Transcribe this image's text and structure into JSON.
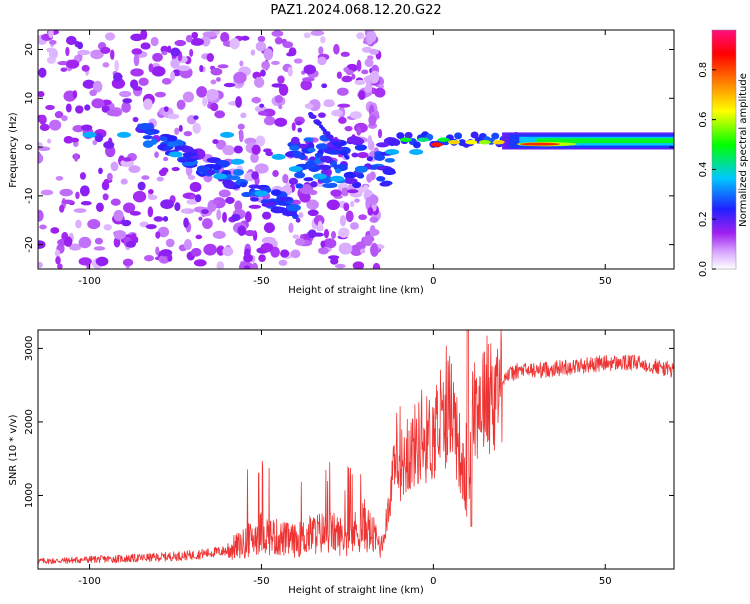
{
  "title": "PAZ1.2024.068.12.20.G22",
  "chart_data": [
    {
      "type": "heatmap",
      "xlabel": "Height of straight line (km)",
      "ylabel": "Frequency (Hz)",
      "xlim": [
        -115,
        70
      ],
      "ylim": [
        -25,
        24
      ],
      "xticks": [
        -100,
        -50,
        0,
        50
      ],
      "yticks": [
        -20,
        -10,
        0,
        10,
        20
      ],
      "colorbar": {
        "label": "Normalized spectral amplitude",
        "range": [
          0,
          0.96
        ],
        "ticks": [
          "0.0",
          "0.2",
          "0.4",
          "0.6",
          "0.8"
        ],
        "tick_values": [
          0.0,
          0.2,
          0.4,
          0.6,
          0.8
        ],
        "colormap": [
          "#ffffff",
          "#a020f0",
          "#2020ff",
          "#00c8ff",
          "#00ff00",
          "#ffff00",
          "#ff8000",
          "#ff0000",
          "#ff1080"
        ]
      },
      "features": [
        {
          "x": 70,
          "y": 1.5,
          "value": 0.35,
          "note": "continuous band"
        },
        {
          "x": 30,
          "y": 0.5,
          "value": 0.85
        },
        {
          "x": 0,
          "y": 0.5,
          "value": 0.9
        },
        {
          "x": -100,
          "y": 2.5,
          "value": 0.35
        },
        {
          "x": -40,
          "y": -13,
          "value": 0.25
        }
      ]
    },
    {
      "type": "line",
      "xlabel": "Height of straight line (km)",
      "ylabel": "SNR (10 * v/v)",
      "xlim": [
        -115,
        70
      ],
      "ylim": [
        0,
        3250
      ],
      "xticks": [
        -100,
        -50,
        0,
        50
      ],
      "yticks": [
        1000,
        2000,
        3000
      ],
      "color": "#ee3333",
      "series": [
        {
          "x": [
            -115,
            -110,
            -100,
            -90,
            -80,
            -70,
            -60,
            -55,
            -50,
            -45,
            -40,
            -35,
            -30,
            -25,
            -20,
            -15,
            -12,
            -10,
            -8,
            -5,
            0,
            3,
            5,
            8,
            10,
            11,
            12,
            15,
            18,
            20,
            25,
            30,
            40,
            50,
            60,
            70
          ],
          "values": [
            110,
            110,
            130,
            140,
            160,
            190,
            250,
            350,
            500,
            420,
            380,
            480,
            500,
            420,
            600,
            300,
            1200,
            1400,
            1500,
            1700,
            1800,
            2000,
            2300,
            1500,
            900,
            1900,
            2200,
            2400,
            2400,
            2600,
            2700,
            2700,
            2750,
            2800,
            2800,
            2700
          ]
        }
      ]
    }
  ]
}
